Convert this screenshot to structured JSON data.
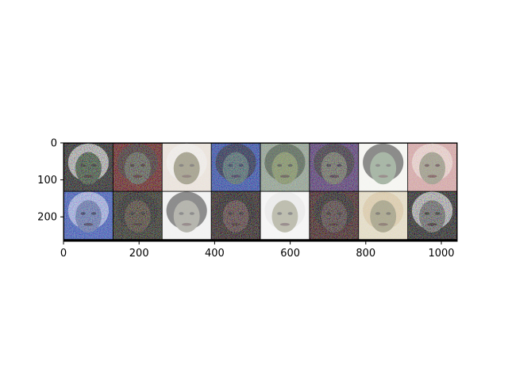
{
  "chart_data": {
    "type": "heatmap",
    "title": "",
    "xlabel": "",
    "ylabel": "",
    "xlim": [
      0,
      1042
    ],
    "ylim": [
      266,
      0
    ],
    "grid": false,
    "x_ticks": [
      0,
      200,
      400,
      600,
      800,
      1000
    ],
    "y_ticks": [
      0,
      100,
      200
    ],
    "image_grid": {
      "rows": 2,
      "cols": 8,
      "tile_size": 128,
      "padding": 2,
      "pad_color": "#000000",
      "tiles": [
        {
          "bg": "#101010",
          "skin": "#3c5a3a",
          "hair": "#e8e8e8"
        },
        {
          "bg": "#5a0a0a",
          "skin": "#4a6a5a",
          "hair": "#202020"
        },
        {
          "bg": "#e8e0d8",
          "skin": "#5a5a3a",
          "hair": "#f0f0f0"
        },
        {
          "bg": "#2040a0",
          "skin": "#4a6a3a",
          "hair": "#0a0a0a"
        },
        {
          "bg": "#8a9a8a",
          "skin": "#6a7a3a",
          "hair": "#203020"
        },
        {
          "bg": "#4a2a6a",
          "skin": "#6a7a4a",
          "hair": "#1a1a10"
        },
        {
          "bg": "#f4f4f0",
          "skin": "#4a6a4a",
          "hair": "#0a0a0a"
        },
        {
          "bg": "#d0a0a0",
          "skin": "#6a8a6a",
          "hair": "#f0e8e0"
        },
        {
          "bg": "#3050b0",
          "skin": "#6a7a9a",
          "hair": "#d0d8f0"
        },
        {
          "bg": "#1a1a10",
          "skin": "#4a3a2a",
          "hair": "#0a0a0a"
        },
        {
          "bg": "#f0f0f0",
          "skin": "#6a6a5a",
          "hair": "#101010"
        },
        {
          "bg": "#1a0a0a",
          "skin": "#5a3a3a",
          "hair": "#0a0505"
        },
        {
          "bg": "#f4f4f4",
          "skin": "#7a7a5a",
          "hair": "#e0e0e0"
        },
        {
          "bg": "#300a0a",
          "skin": "#4a3a3a",
          "hair": "#0a0a0a"
        },
        {
          "bg": "#e0d8c0",
          "skin": "#6a6a4a",
          "hair": "#d0b890"
        },
        {
          "bg": "#101010",
          "skin": "#7a7a7a",
          "hair": "#e8e8e8"
        }
      ]
    }
  }
}
